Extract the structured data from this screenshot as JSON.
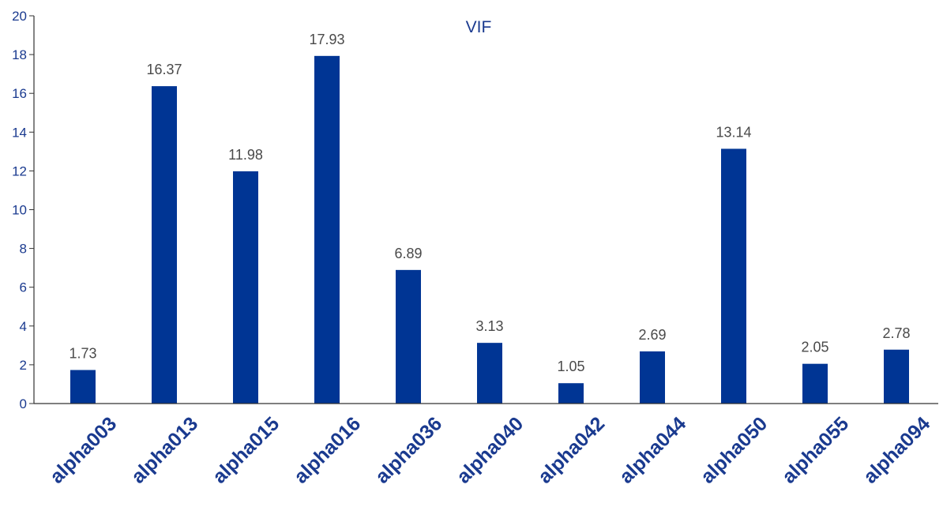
{
  "colors": {
    "bar": "#003594",
    "axis_text": "#1a3a8f",
    "axis_line": "#333333",
    "data_label": "#4a4a4a"
  },
  "chart_data": {
    "type": "bar",
    "title": "VIF",
    "xlabel": "",
    "ylabel": "",
    "ylim": [
      0,
      20
    ],
    "yticks": [
      0,
      2,
      4,
      6,
      8,
      10,
      12,
      14,
      16,
      18,
      20
    ],
    "grid": false,
    "legend": "none",
    "categories": [
      "alpha003",
      "alpha013",
      "alpha015",
      "alpha016",
      "alpha036",
      "alpha040",
      "alpha042",
      "alpha044",
      "alpha050",
      "alpha055",
      "alpha094"
    ],
    "values": [
      1.73,
      16.37,
      11.98,
      17.93,
      6.89,
      3.13,
      1.05,
      2.69,
      13.14,
      2.05,
      2.78
    ],
    "data_labels": [
      "1.73",
      "16.37",
      "11.98",
      "17.93",
      "6.89",
      "3.13",
      "1.05",
      "2.69",
      "13.14",
      "2.05",
      "2.78"
    ]
  }
}
